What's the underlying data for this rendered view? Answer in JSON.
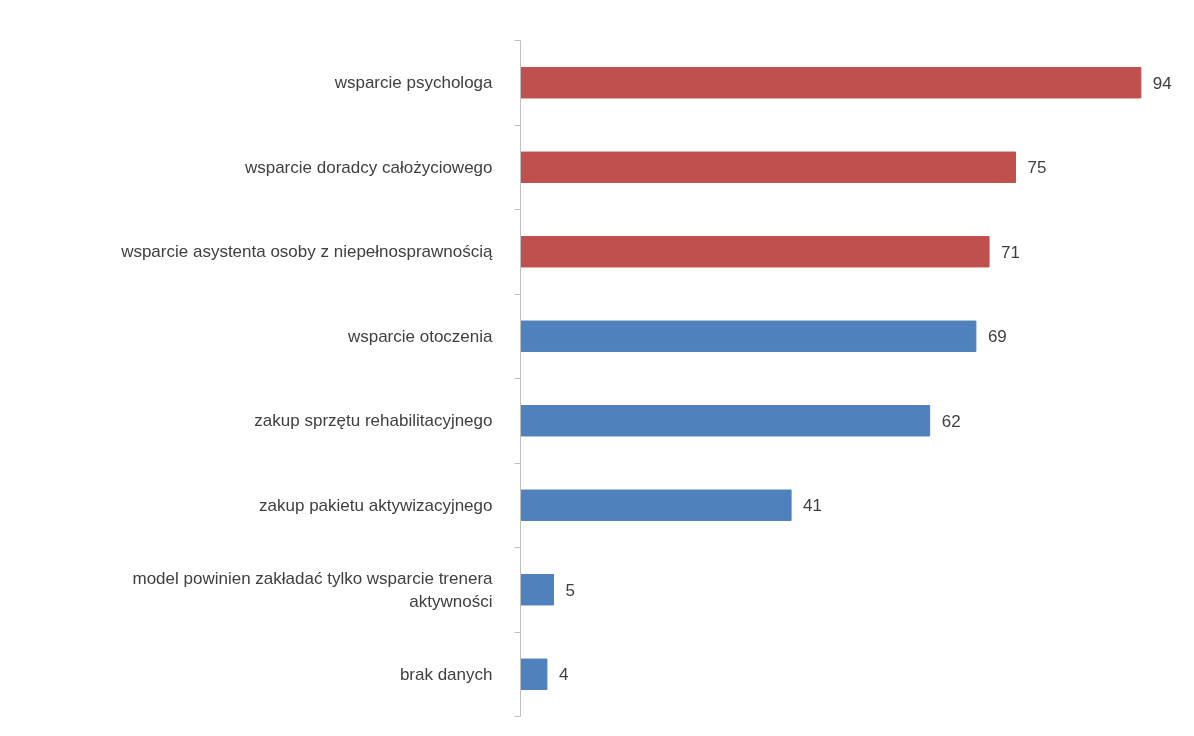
{
  "chart_data": {
    "type": "bar",
    "orientation": "horizontal",
    "categories": [
      "wsparcie psychologa",
      "wsparcie doradcy całożyciowego",
      "wsparcie asystenta osoby z niepełnosprawnością",
      "wsparcie otoczenia ",
      "zakup sprzętu rehabilitacyjnego",
      "zakup pakietu aktywizacyjnego",
      "model powinien zakładać tylko wsparcie trenera aktywności",
      "brak danych"
    ],
    "values": [
      94,
      75,
      71,
      69,
      62,
      41,
      5,
      4
    ],
    "colors": [
      "#c0504d",
      "#c0504d",
      "#c0504d",
      "#4f81bd",
      "#4f81bd",
      "#4f81bd",
      "#4f81bd",
      "#4f81bd"
    ],
    "data_labels": true,
    "grid": false
  }
}
